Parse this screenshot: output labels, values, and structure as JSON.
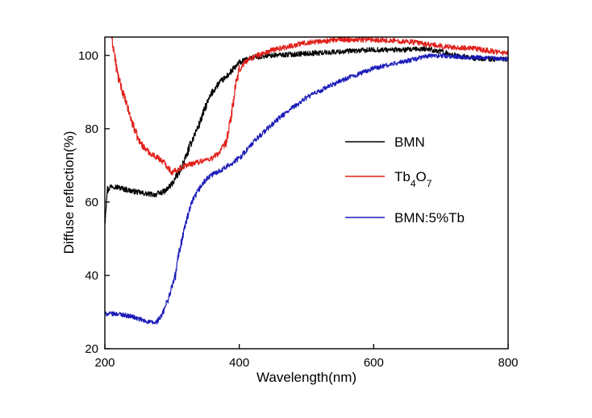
{
  "chart_data": {
    "type": "line",
    "title": "",
    "xlabel": "Wavelength(nm)",
    "ylabel": "Diffuse reflection(%)",
    "xlim": [
      200,
      800
    ],
    "ylim": [
      20,
      105
    ],
    "xticks": [
      200,
      400,
      600,
      800
    ],
    "yticks": [
      20,
      40,
      60,
      80,
      100
    ],
    "grid": false,
    "legend_position": "center-right",
    "series": [
      {
        "name": "BMN",
        "color": "#000000",
        "noise": 0.7,
        "x": [
          200,
          203,
          210,
          220,
          240,
          260,
          275,
          290,
          300,
          310,
          320,
          330,
          340,
          350,
          360,
          370,
          380,
          390,
          400,
          420,
          450,
          500,
          550,
          600,
          650,
          680,
          700,
          720,
          750,
          780,
          800
        ],
        "y": [
          55,
          63,
          64.5,
          64,
          63,
          62.3,
          62,
          63,
          65,
          68,
          72,
          77,
          81,
          86,
          90,
          92.5,
          94,
          96,
          98,
          99.5,
          100,
          100.5,
          101,
          101.5,
          101.5,
          101.8,
          101,
          100,
          99.2,
          99,
          99
        ]
      },
      {
        "name": "Tb4O7",
        "color": "#e0201b",
        "noise": 0.7,
        "x": [
          210,
          213,
          216,
          220,
          230,
          240,
          250,
          260,
          270,
          280,
          290,
          300,
          310,
          320,
          330,
          340,
          350,
          360,
          370,
          380,
          385,
          390,
          395,
          400,
          410,
          420,
          450,
          500,
          550,
          600,
          650,
          700,
          750,
          800
        ],
        "y": [
          105,
          102,
          98,
          94,
          88,
          82,
          77,
          74.5,
          73,
          72,
          70.5,
          68,
          69,
          70,
          70.5,
          71,
          71.5,
          72,
          73.5,
          76,
          80,
          86,
          92,
          96,
          98.5,
          99.5,
          101.5,
          103.5,
          104.3,
          104.3,
          103.8,
          102.5,
          101.8,
          100.5
        ]
      },
      {
        "name": "BMN:5%Tb",
        "color": "#1a1ab8",
        "noise": 0.6,
        "x": [
          200,
          220,
          240,
          260,
          275,
          285,
          295,
          305,
          310,
          320,
          330,
          340,
          350,
          360,
          380,
          400,
          430,
          460,
          500,
          550,
          600,
          650,
          680,
          700,
          720,
          750,
          780,
          800
        ],
        "y": [
          29.5,
          29.5,
          28.8,
          27.5,
          27,
          29,
          34,
          40,
          46,
          54,
          60,
          63.5,
          66,
          67.5,
          69.5,
          72,
          78,
          83,
          88.5,
          93,
          96.5,
          98.5,
          99.8,
          100,
          99.7,
          99.4,
          99.2,
          99
        ]
      }
    ]
  }
}
